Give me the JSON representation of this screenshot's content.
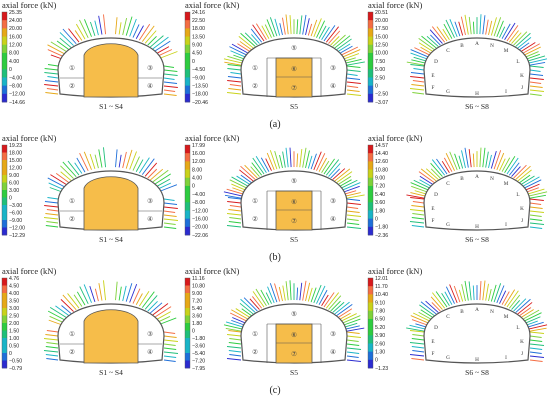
{
  "colors": {
    "scale": [
      "#d7191c",
      "#f46d43",
      "#e6a817",
      "#c9d21a",
      "#7fd23a",
      "#2ecc40",
      "#1fbf7a",
      "#19b4c7",
      "#1e6fd9",
      "#2b2bd0"
    ],
    "excavated": "#f6bd4a",
    "outline": "#555555"
  },
  "rows": [
    {
      "label": "(a)",
      "panels": [
        {
          "title": "axial force (kN)",
          "stage": "S1 ~ S4",
          "type": "side",
          "ticks": [
            "25.35",
            "24.00",
            "20.00",
            "16.00",
            "12.00",
            "8.00",
            "4.00",
            "0",
            "−4.00",
            "−8.00",
            "−12.00",
            "−14.66"
          ]
        },
        {
          "title": "axial force (kN)",
          "stage": "S5",
          "type": "middle",
          "ticks": [
            "24.16",
            "22.50",
            "18.00",
            "13.50",
            "9.00",
            "4.50",
            "0",
            "−4.50",
            "−9.00",
            "−13.50",
            "−18.00",
            "−20.46"
          ]
        },
        {
          "title": "axial force (kN)",
          "stage": "S6 ~ S8",
          "type": "full",
          "ticks": [
            "20.51",
            "20.00",
            "17.50",
            "15.00",
            "12.50",
            "10.00",
            "7.50",
            "5.00",
            "2.50",
            "0",
            "−2.50",
            "−3.07"
          ]
        }
      ]
    },
    {
      "label": "(b)",
      "panels": [
        {
          "title": "axial force (kN)",
          "stage": "S1 ~ S4",
          "type": "side",
          "ticks": [
            "19.23",
            "18.00",
            "15.00",
            "12.00",
            "9.00",
            "6.00",
            "3.00",
            "0",
            "−3.00",
            "−6.00",
            "−9.00",
            "−12.00",
            "−12.29"
          ]
        },
        {
          "title": "axial force (kN)",
          "stage": "S5",
          "type": "middle",
          "ticks": [
            "17.99",
            "16.00",
            "12.00",
            "8.00",
            "4.00",
            "0",
            "−4.00",
            "−8.00",
            "−12.00",
            "−16.00",
            "−20.00",
            "−22.06"
          ]
        },
        {
          "title": "axial force (kN)",
          "stage": "S6 ~ S8",
          "type": "full",
          "ticks": [
            "14.57",
            "14.40",
            "12.60",
            "10.80",
            "9.00",
            "7.20",
            "5.40",
            "3.60",
            "1.80",
            "0",
            "−1.80",
            "−2.36"
          ]
        }
      ]
    },
    {
      "label": "(c)",
      "panels": [
        {
          "title": "axial force (kN)",
          "stage": "S1 ~ S4",
          "type": "side",
          "ticks": [
            "4.76",
            "4.50",
            "4.00",
            "3.50",
            "3.00",
            "2.50",
            "2.00",
            "1.50",
            "1.00",
            "0.50",
            "0",
            "−0.50",
            "−0.79"
          ]
        },
        {
          "title": "axial force (kN)",
          "stage": "S5",
          "type": "middle",
          "ticks": [
            "11.16",
            "10.80",
            "9.00",
            "7.20",
            "5.40",
            "3.60",
            "1.80",
            "0",
            "−1.80",
            "−3.60",
            "−5.40",
            "−7.20",
            "−7.95"
          ]
        },
        {
          "title": "axial force (kN)",
          "stage": "S6 ~ S8",
          "type": "full",
          "ticks": [
            "12.01",
            "11.70",
            "10.40",
            "9.10",
            "7.80",
            "6.50",
            "5.20",
            "3.90",
            "2.60",
            "1.30",
            "0",
            "−1.23"
          ]
        }
      ]
    }
  ],
  "zones": {
    "side": [
      "①",
      "②",
      "③",
      "④"
    ],
    "middle": [
      "⑤",
      "⑥",
      "⑦",
      "①",
      "②",
      "③",
      "④"
    ]
  },
  "letters": [
    "A",
    "B",
    "C",
    "D",
    "E",
    "F",
    "G",
    "H",
    "I",
    "J",
    "K",
    "L",
    "M",
    "N"
  ]
}
